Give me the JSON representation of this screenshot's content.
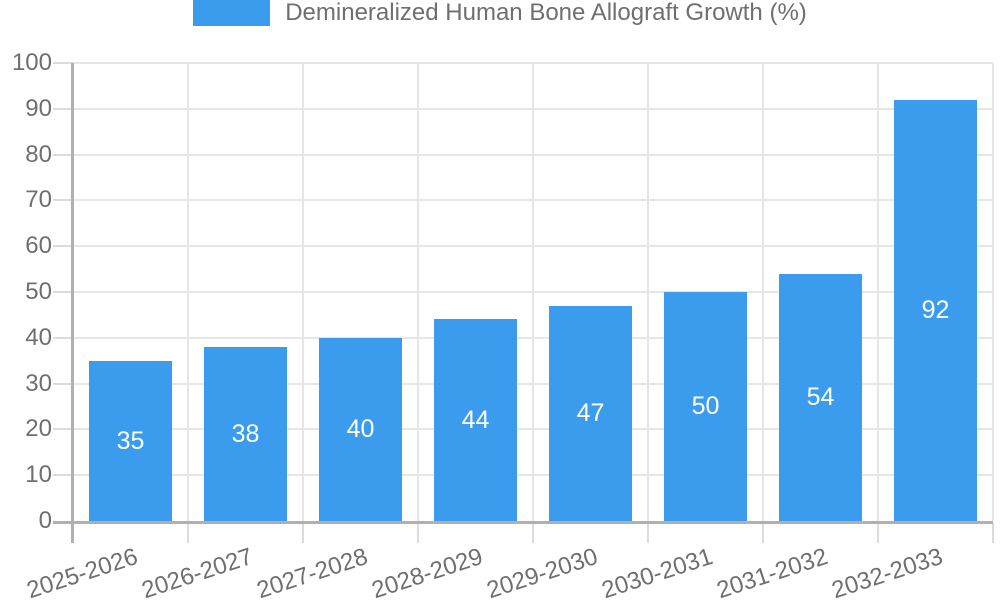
{
  "chart_data": {
    "type": "bar",
    "legend_label": "Demineralized Human Bone Allograft Growth (%)",
    "categories": [
      "2025-2026",
      "2026-2027",
      "2027-2028",
      "2028-2029",
      "2029-2030",
      "2030-2031",
      "2031-2032",
      "2032-2033"
    ],
    "values": [
      35,
      38,
      40,
      44,
      47,
      50,
      54,
      92
    ],
    "xlabel": "",
    "ylabel": "",
    "ylim": [
      0,
      100
    ],
    "yticks": [
      0,
      10,
      20,
      30,
      40,
      50,
      60,
      70,
      80,
      90,
      100
    ],
    "grid": true,
    "legend_position": "top",
    "bar_labels_inside": true,
    "label_rotation_deg": -18,
    "colors": {
      "bar": "#3B9CEE",
      "bar_label": "#FFFFFF",
      "grid": "#E6E6E6",
      "tick": "#DCDCDC",
      "axis": "#B0B0B0",
      "text": "#6F6F6F",
      "background": "#FFFFFF"
    }
  }
}
